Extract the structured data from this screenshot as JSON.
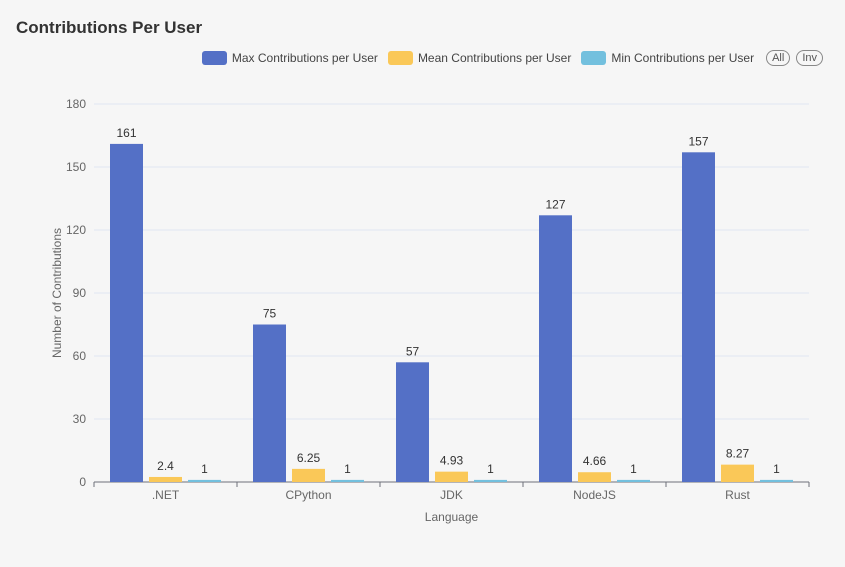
{
  "title": "Contributions Per User",
  "legend": {
    "all_label": "All",
    "inv_label": "Inv"
  },
  "chart_data": {
    "type": "bar",
    "title": "Contributions Per User",
    "xlabel": "Language",
    "ylabel": "Number of Contributions",
    "categories": [
      ".NET",
      "CPython",
      "JDK",
      "NodeJS",
      "Rust"
    ],
    "ylim": [
      0,
      180
    ],
    "yticks": [
      0,
      30,
      60,
      90,
      120,
      150,
      180
    ],
    "grid": true,
    "legend_position": "top-right",
    "series": [
      {
        "name": "Max Contributions per User",
        "color": "#5470c6",
        "values": [
          161,
          75,
          57,
          127,
          157
        ],
        "labels": [
          "161",
          "75",
          "57",
          "127",
          "157"
        ]
      },
      {
        "name": "Mean Contributions per User",
        "color": "#fac858",
        "values": [
          2.4,
          6.25,
          4.93,
          4.66,
          8.27
        ],
        "labels": [
          "2.4",
          "6.25",
          "4.93",
          "4.66",
          "8.27"
        ]
      },
      {
        "name": "Min Contributions per User",
        "color": "#73c0de",
        "values": [
          1,
          1,
          1,
          1,
          1
        ],
        "labels": [
          "1",
          "1",
          "1",
          "1",
          "1"
        ]
      }
    ]
  }
}
